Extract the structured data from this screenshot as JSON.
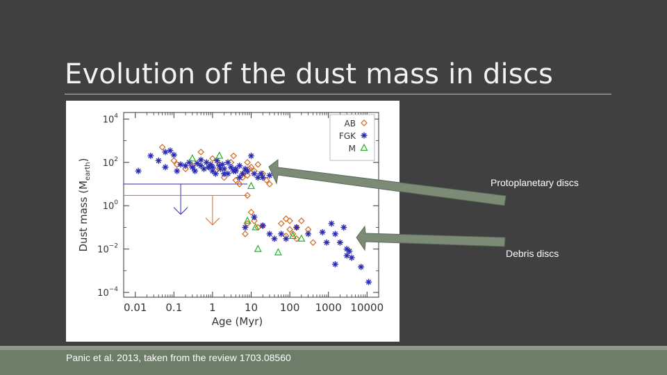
{
  "slide": {
    "title": "Evolution of the dust mass in discs",
    "citation": "Panic et al. 2013, taken from the review 1703.08560",
    "annotations": {
      "protoplanetary": "Protoplanetary discs",
      "debris": "Debris discs"
    },
    "colors": {
      "background": "#404040",
      "arrow_fill": "#7b8b76",
      "footer": "#6d7d6a"
    }
  },
  "chart_data": {
    "type": "scatter",
    "xlabel": "Age (Myr)",
    "ylabel": "Dust mass (M",
    "ylabel_sub": "earth",
    "ylabel_close": ")",
    "x_log": true,
    "y_log": true,
    "xlim": [
      0.005,
      20000
    ],
    "ylim": [
      6e-05,
      20000
    ],
    "x_ticks": [
      {
        "v": 0.01,
        "label": "0.01"
      },
      {
        "v": 0.1,
        "label": "0.1"
      },
      {
        "v": 1,
        "label": "1"
      },
      {
        "v": 10,
        "label": "10"
      },
      {
        "v": 100,
        "label": "100"
      },
      {
        "v": 1000,
        "label": "1000"
      },
      {
        "v": 10000,
        "label": "10000"
      }
    ],
    "y_ticks": [
      {
        "v": 0.0001,
        "base": "10",
        "exp": "−4"
      },
      {
        "v": 0.01,
        "base": "10",
        "exp": "−2"
      },
      {
        "v": 1,
        "base": "10",
        "exp": "0"
      },
      {
        "v": 100,
        "base": "10",
        "exp": "2"
      },
      {
        "v": 10000,
        "base": "10",
        "exp": "4"
      }
    ],
    "legend": {
      "position": "top-right",
      "entries": [
        {
          "name": "AB",
          "marker": "diamond",
          "color": "#d2691e"
        },
        {
          "name": "FGK",
          "marker": "asterisk",
          "color": "#2b2bb0"
        },
        {
          "name": "M",
          "marker": "triangle",
          "color": "#22b022"
        }
      ]
    },
    "series": [
      {
        "name": "AB",
        "marker": "diamond",
        "color": "#d2691e",
        "points": [
          [
            0.05,
            500
          ],
          [
            0.1,
            120
          ],
          [
            0.12,
            80
          ],
          [
            0.2,
            50
          ],
          [
            0.3,
            70
          ],
          [
            0.5,
            300
          ],
          [
            0.8,
            60
          ],
          [
            1,
            150
          ],
          [
            1.2,
            40
          ],
          [
            1.5,
            80
          ],
          [
            2,
            20
          ],
          [
            3,
            100
          ],
          [
            3.5,
            200
          ],
          [
            4,
            15
          ],
          [
            5,
            10
          ],
          [
            6,
            20
          ],
          [
            7,
            35
          ],
          [
            8,
            100
          ],
          [
            8,
            25
          ],
          [
            9,
            50
          ],
          [
            10,
            60
          ],
          [
            12,
            40
          ],
          [
            15,
            80
          ],
          [
            20,
            30
          ],
          [
            25,
            15
          ],
          [
            30,
            10
          ],
          [
            8,
            3
          ],
          [
            10,
            0.5
          ],
          [
            8,
            0.15
          ],
          [
            12,
            0.2
          ],
          [
            15,
            0.1
          ],
          [
            7,
            0.05
          ],
          [
            20,
            0.12
          ],
          [
            60,
            0.15
          ],
          [
            80,
            0.25
          ],
          [
            100,
            0.2
          ],
          [
            100,
            0.08
          ],
          [
            150,
            0.1
          ],
          [
            200,
            0.2
          ],
          [
            120,
            0.05
          ],
          [
            300,
            0.08
          ],
          [
            400,
            0.02
          ],
          [
            80,
            0.04
          ],
          [
            150,
            0.03
          ]
        ]
      },
      {
        "name": "FGK",
        "marker": "asterisk",
        "color": "#2b2bb0",
        "points": [
          [
            0.012,
            40
          ],
          [
            0.025,
            200
          ],
          [
            0.04,
            120
          ],
          [
            0.06,
            300
          ],
          [
            0.06,
            60
          ],
          [
            0.08,
            350
          ],
          [
            0.1,
            220
          ],
          [
            0.12,
            40
          ],
          [
            0.15,
            80
          ],
          [
            0.2,
            70
          ],
          [
            0.25,
            100
          ],
          [
            0.3,
            60
          ],
          [
            0.35,
            40
          ],
          [
            0.4,
            90
          ],
          [
            0.5,
            70
          ],
          [
            0.5,
            130
          ],
          [
            0.6,
            50
          ],
          [
            0.7,
            100
          ],
          [
            0.8,
            60
          ],
          [
            0.9,
            80
          ],
          [
            1,
            60
          ],
          [
            1,
            40
          ],
          [
            1.2,
            30
          ],
          [
            1.3,
            120
          ],
          [
            1.5,
            70
          ],
          [
            1.6,
            50
          ],
          [
            1.8,
            80
          ],
          [
            2,
            30
          ],
          [
            2,
            50
          ],
          [
            2.5,
            100
          ],
          [
            2.5,
            30
          ],
          [
            3,
            60
          ],
          [
            3.5,
            40
          ],
          [
            4,
            50
          ],
          [
            4,
            40
          ],
          [
            5,
            70
          ],
          [
            5,
            20
          ],
          [
            6,
            30
          ],
          [
            7,
            50
          ],
          [
            8,
            40
          ],
          [
            10,
            200
          ],
          [
            12,
            30
          ],
          [
            15,
            20
          ],
          [
            18,
            30
          ],
          [
            20,
            20
          ],
          [
            30,
            25
          ],
          [
            7,
            0.1
          ],
          [
            12,
            0.3
          ],
          [
            20,
            0.12
          ],
          [
            30,
            0.05
          ],
          [
            40,
            0.03
          ],
          [
            60,
            0.05
          ],
          [
            80,
            0.03
          ],
          [
            150,
            0.1
          ],
          [
            300,
            0.05
          ],
          [
            700,
            0.06
          ],
          [
            900,
            0.02
          ],
          [
            1200,
            0.15
          ],
          [
            1500,
            0.05
          ],
          [
            2000,
            0.02
          ],
          [
            2500,
            0.1
          ],
          [
            3000,
            0.01
          ],
          [
            3500,
            0.008
          ],
          [
            4000,
            0.004
          ],
          [
            3000,
            0.005
          ],
          [
            1500,
            0.002
          ],
          [
            7000,
            0.0015
          ],
          [
            11000,
            0.0003
          ]
        ]
      },
      {
        "name": "M",
        "marker": "triangle",
        "color": "#22b022",
        "points": [
          [
            0.3,
            150
          ],
          [
            1.5,
            200
          ],
          [
            10,
            8
          ],
          [
            8,
            0.2
          ],
          [
            13,
            0.1
          ],
          [
            15,
            0.01
          ],
          [
            50,
            0.007
          ],
          [
            120,
            0.04
          ],
          [
            200,
            0.03
          ]
        ]
      }
    ],
    "upper_limits": [
      {
        "series": "FGK",
        "x_range": [
          0.009,
          8
        ],
        "y": 10,
        "x_mid": 0.15,
        "y_end": 0.4,
        "color": "#2b2bb0"
      },
      {
        "series": "AB",
        "x_range": [
          0.009,
          8
        ],
        "y": 3,
        "x_mid": 1,
        "y_end": 0.13,
        "color": "#d2691e"
      }
    ]
  }
}
